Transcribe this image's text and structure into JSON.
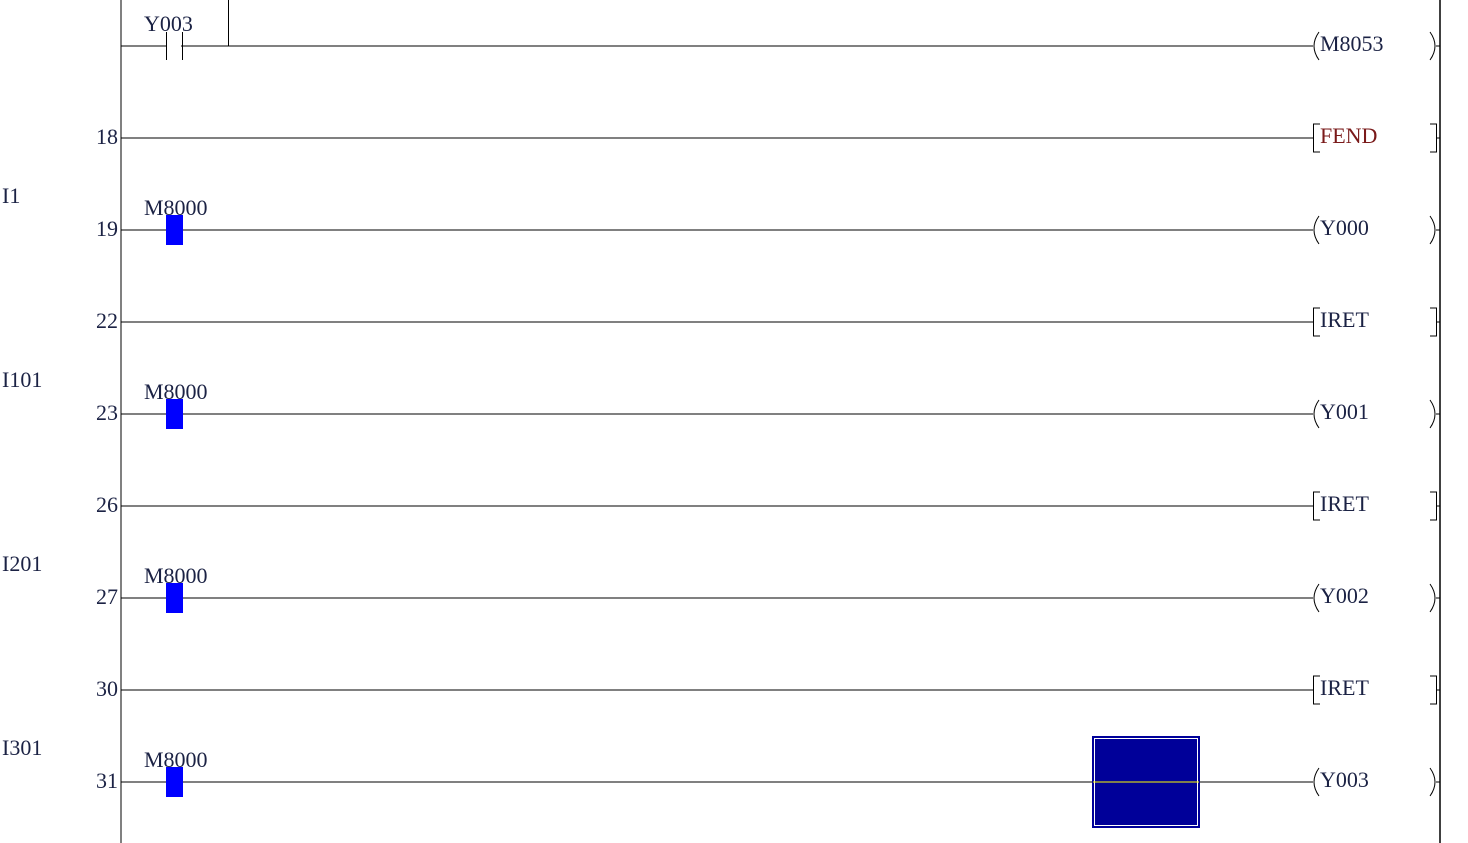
{
  "rungs": [
    {
      "step": "",
      "pointer": "",
      "contact": "Y003",
      "contact_state": "off",
      "branch": true,
      "output_kind": "coil",
      "output": "M8053"
    },
    {
      "step": "18",
      "pointer": "",
      "contact": "",
      "contact_state": "",
      "output_kind": "instruction",
      "output": "FEND"
    },
    {
      "step": "19",
      "pointer": "I1",
      "contact": "M8000",
      "contact_state": "on",
      "output_kind": "coil",
      "output": "Y000"
    },
    {
      "step": "22",
      "pointer": "",
      "contact": "",
      "contact_state": "",
      "output_kind": "instruction",
      "output": "IRET"
    },
    {
      "step": "23",
      "pointer": "I101",
      "contact": "M8000",
      "contact_state": "on",
      "output_kind": "coil",
      "output": "Y001"
    },
    {
      "step": "26",
      "pointer": "",
      "contact": "",
      "contact_state": "",
      "output_kind": "instruction",
      "output": "IRET"
    },
    {
      "step": "27",
      "pointer": "I201",
      "contact": "M8000",
      "contact_state": "on",
      "output_kind": "coil",
      "output": "Y002"
    },
    {
      "step": "30",
      "pointer": "",
      "contact": "",
      "contact_state": "",
      "output_kind": "instruction",
      "output": "IRET"
    },
    {
      "step": "31",
      "pointer": "I301",
      "contact": "M8000",
      "contact_state": "on",
      "output_kind": "coil",
      "output": "Y003"
    }
  ],
  "colors": {
    "active_contact": "#0000ff",
    "cursor": "#000099",
    "cursor_line": "#ffff00"
  }
}
